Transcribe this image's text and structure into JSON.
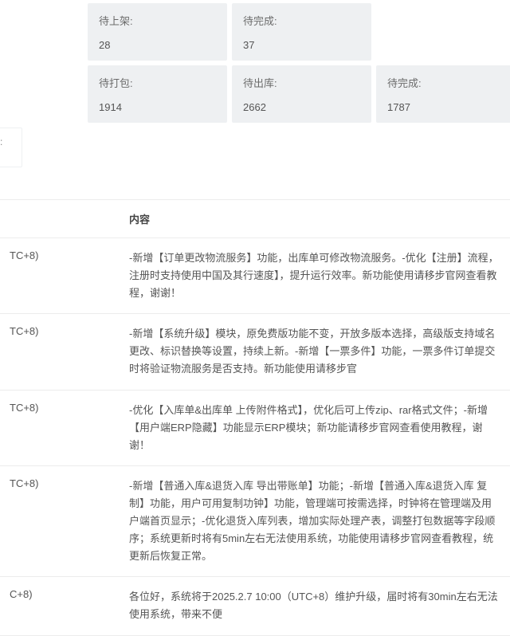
{
  "stats": {
    "row1": [
      {
        "label": "待上架:",
        "value": "28"
      },
      {
        "label": "待完成:",
        "value": "37"
      }
    ],
    "row2": [
      {
        "label": "待打包:",
        "value": "1914"
      },
      {
        "label": "待出库:",
        "value": "2662"
      },
      {
        "label": "待完成:",
        "value": "1787"
      }
    ]
  },
  "sideFrag": ":",
  "table": {
    "headers": {
      "time": "",
      "content": "内容"
    },
    "rows": [
      {
        "time": "TC+8)",
        "content": "-新增【订单更改物流服务】功能，出库单可修改物流服务。-优化【注册】流程，注册时支持使用中国及其行速度】，提升运行效率。新功能使用请移步官网查看教程，谢谢！"
      },
      {
        "time": "TC+8)",
        "content": "-新增【系统升级】模块，原免费版功能不变，开放多版本选择，高级版支持域名更改、标识替换等设置，持续上新。-新增【一票多件】功能，一票多件订单提交时将验证物流服务是否支持。新功能使用请移步官"
      },
      {
        "time": "TC+8)",
        "content": "-优化【入库单&出库单 上传附件格式】，优化后可上传zip、rar格式文件；-新增【用户端ERP隐藏】功能显示ERP模块；新功能请移步官网查看使用教程，谢谢！"
      },
      {
        "time": "TC+8)",
        "content": "-新增【普通入库&退货入库 导出带账单】功能；-新增【普通入库&退货入库 复制】功能，用户可用复制功钟】功能，管理端可按需选择，时钟将在管理端及用户端首页显示；-优化退货入库列表，增加实际处理产表，调整打包数据等字段顺序；系统更新时将有5min左右无法使用系统，功能使用请移步官网查看教程，统更新后恢复正常。"
      },
      {
        "time": "C+8)",
        "content": "各位好，系统将于2025.2.7 10:00（UTC+8）维护升级，届时将有30min左右无法使用系统，带来不便"
      }
    ]
  }
}
